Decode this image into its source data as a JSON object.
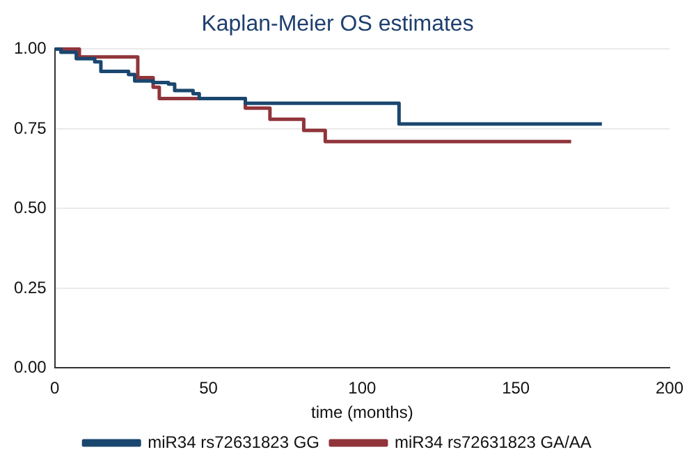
{
  "chart_data": {
    "type": "step",
    "title": "Kaplan-Meier OS estimates",
    "xlabel": "time (months)",
    "xlim": [
      0,
      200
    ],
    "xticks": [
      0,
      50,
      100,
      150,
      200
    ],
    "ylim": [
      0,
      1
    ],
    "yticks": [
      {
        "value": 0,
        "label": "0.00"
      },
      {
        "value": 0.25,
        "label": "0.25"
      },
      {
        "value": 0.5,
        "label": "0.50"
      },
      {
        "value": 0.75,
        "label": "0.75"
      },
      {
        "value": 1,
        "label": "1.00"
      }
    ],
    "grid": "y",
    "legend": "bottom",
    "marker": "none",
    "series": [
      {
        "name": "miR34 rs72631823 GG",
        "color": "#1a476f",
        "x": [
          0,
          2,
          7,
          13,
          15,
          24,
          26,
          32,
          37,
          39,
          45,
          47,
          62,
          112,
          178
        ],
        "values": [
          1,
          0.99,
          0.97,
          0.96,
          0.93,
          0.92,
          0.9,
          0.895,
          0.89,
          0.87,
          0.86,
          0.845,
          0.83,
          0.765,
          0.765
        ]
      },
      {
        "name": "miR34 rs72631823 GA/AA",
        "color": "#90353b",
        "x": [
          0,
          8,
          27,
          32,
          34,
          62,
          70,
          81,
          88,
          168
        ],
        "values": [
          1,
          0.975,
          0.91,
          0.88,
          0.845,
          0.815,
          0.78,
          0.745,
          0.71,
          0.71
        ]
      }
    ]
  }
}
